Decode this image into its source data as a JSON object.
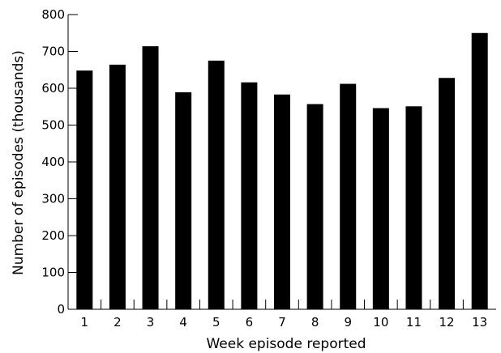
{
  "chart_data": {
    "type": "bar",
    "title": "",
    "xlabel": "Week episode reported",
    "ylabel": "Number of episodes (thousands)",
    "categories": [
      "1",
      "2",
      "3",
      "4",
      "5",
      "6",
      "7",
      "8",
      "9",
      "10",
      "11",
      "12",
      "13"
    ],
    "values": [
      648,
      664,
      714,
      589,
      675,
      616,
      583,
      557,
      612,
      546,
      551,
      628,
      750
    ],
    "ylim": [
      0,
      800
    ],
    "yticks": [
      0,
      100,
      200,
      300,
      400,
      500,
      600,
      700,
      800
    ],
    "ytick_labels": [
      "0",
      "100",
      "200",
      "300",
      "400",
      "500",
      "600",
      "700",
      "800"
    ],
    "grid": false,
    "legend": "none",
    "bar_color": "#000000"
  }
}
